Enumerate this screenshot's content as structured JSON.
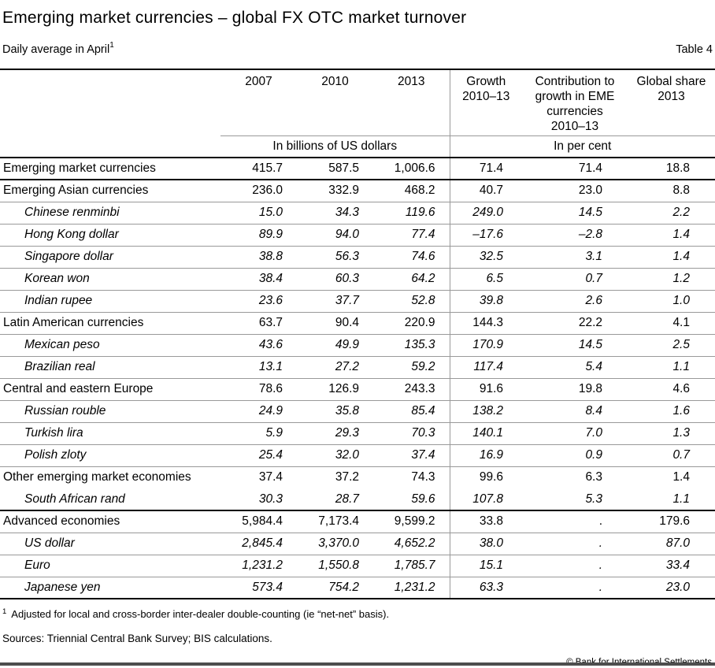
{
  "page": {
    "title": "Emerging market currencies – global FX OTC market turnover",
    "subtitle": "Daily average in April",
    "subtitle_footnote_marker": "1",
    "table_label": "Table 4"
  },
  "table": {
    "column_headers": [
      "2007",
      "2010",
      "2013",
      "Growth\n2010–13",
      "Contribution to\ngrowth in EME\ncurrencies\n2010–13",
      "Global share\n2013"
    ],
    "unit_headers": [
      "In billions of US dollars",
      "In per cent"
    ],
    "rows": [
      {
        "label": "Emerging market currencies",
        "type": "group",
        "separator": "dark",
        "values": [
          "415.7",
          "587.5",
          "1,006.6",
          "71.4",
          "71.4",
          "18.8"
        ]
      },
      {
        "label": "Emerging Asian currencies",
        "type": "group",
        "separator": "light",
        "values": [
          "236.0",
          "332.9",
          "468.2",
          "40.7",
          "23.0",
          "8.8"
        ]
      },
      {
        "label": "Chinese renminbi",
        "type": "item",
        "separator": "light",
        "values": [
          "15.0",
          "34.3",
          "119.6",
          "249.0",
          "14.5",
          "2.2"
        ]
      },
      {
        "label": "Hong Kong dollar",
        "type": "item",
        "separator": "light",
        "values": [
          "89.9",
          "94.0",
          "77.4",
          "–17.6",
          "–2.8",
          "1.4"
        ]
      },
      {
        "label": "Singapore dollar",
        "type": "item",
        "separator": "light",
        "values": [
          "38.8",
          "56.3",
          "74.6",
          "32.5",
          "3.1",
          "1.4"
        ]
      },
      {
        "label": "Korean won",
        "type": "item",
        "separator": "light",
        "values": [
          "38.4",
          "60.3",
          "64.2",
          "6.5",
          "0.7",
          "1.2"
        ]
      },
      {
        "label": "Indian rupee",
        "type": "item",
        "separator": "light",
        "values": [
          "23.6",
          "37.7",
          "52.8",
          "39.8",
          "2.6",
          "1.0"
        ]
      },
      {
        "label": "Latin American currencies",
        "type": "group",
        "separator": "light",
        "values": [
          "63.7",
          "90.4",
          "220.9",
          "144.3",
          "22.2",
          "4.1"
        ]
      },
      {
        "label": "Mexican peso",
        "type": "item",
        "separator": "light",
        "values": [
          "43.6",
          "49.9",
          "135.3",
          "170.9",
          "14.5",
          "2.5"
        ]
      },
      {
        "label": "Brazilian real",
        "type": "item",
        "separator": "light",
        "values": [
          "13.1",
          "27.2",
          "59.2",
          "117.4",
          "5.4",
          "1.1"
        ]
      },
      {
        "label": "Central and eastern Europe",
        "type": "group",
        "separator": "light",
        "values": [
          "78.6",
          "126.9",
          "243.3",
          "91.6",
          "19.8",
          "4.6"
        ]
      },
      {
        "label": "Russian rouble",
        "type": "item",
        "separator": "light",
        "values": [
          "24.9",
          "35.8",
          "85.4",
          "138.2",
          "8.4",
          "1.6"
        ]
      },
      {
        "label": "Turkish lira",
        "type": "item",
        "separator": "light",
        "values": [
          "5.9",
          "29.3",
          "70.3",
          "140.1",
          "7.0",
          "1.3"
        ]
      },
      {
        "label": "Polish zloty",
        "type": "item",
        "separator": "light",
        "values": [
          "25.4",
          "32.0",
          "37.4",
          "16.9",
          "0.9",
          "0.7"
        ]
      },
      {
        "label": "Other emerging market economies",
        "type": "group",
        "separator": "none",
        "values": [
          "37.4",
          "37.2",
          "74.3",
          "99.6",
          "6.3",
          "1.4"
        ]
      },
      {
        "label": "South African rand",
        "type": "item",
        "separator": "dark",
        "values": [
          "30.3",
          "28.7",
          "59.6",
          "107.8",
          "5.3",
          "1.1"
        ]
      },
      {
        "label": "Advanced economies",
        "type": "group",
        "separator": "light",
        "values": [
          "5,984.4",
          "7,173.4",
          "9,599.2",
          "33.8",
          ".",
          "179.6"
        ]
      },
      {
        "label": "US dollar",
        "type": "item",
        "separator": "light",
        "values": [
          "2,845.4",
          "3,370.0",
          "4,652.2",
          "38.0",
          ".",
          "87.0"
        ]
      },
      {
        "label": "Euro",
        "type": "item",
        "separator": "light",
        "values": [
          "1,231.2",
          "1,550.8",
          "1,785.7",
          "15.1",
          ".",
          "33.4"
        ]
      },
      {
        "label": "Japanese yen",
        "type": "item",
        "separator": "dark",
        "values": [
          "573.4",
          "754.2",
          "1,231.2",
          "63.3",
          ".",
          "23.0"
        ]
      }
    ]
  },
  "footnote": {
    "marker": "1",
    "text": "Adjusted for local and cross-border inter-dealer double-counting (ie “net-net” basis)."
  },
  "footer": {
    "sources": "Sources: Triennial Central Bank Survey; BIS calculations.",
    "copyright": "© Bank for International Settlements"
  },
  "colors": {
    "rule_dark": "#000000",
    "rule_light": "#999999",
    "bottom_bar": "#4d4d4d",
    "text": "#000000",
    "background": "#ffffff"
  }
}
